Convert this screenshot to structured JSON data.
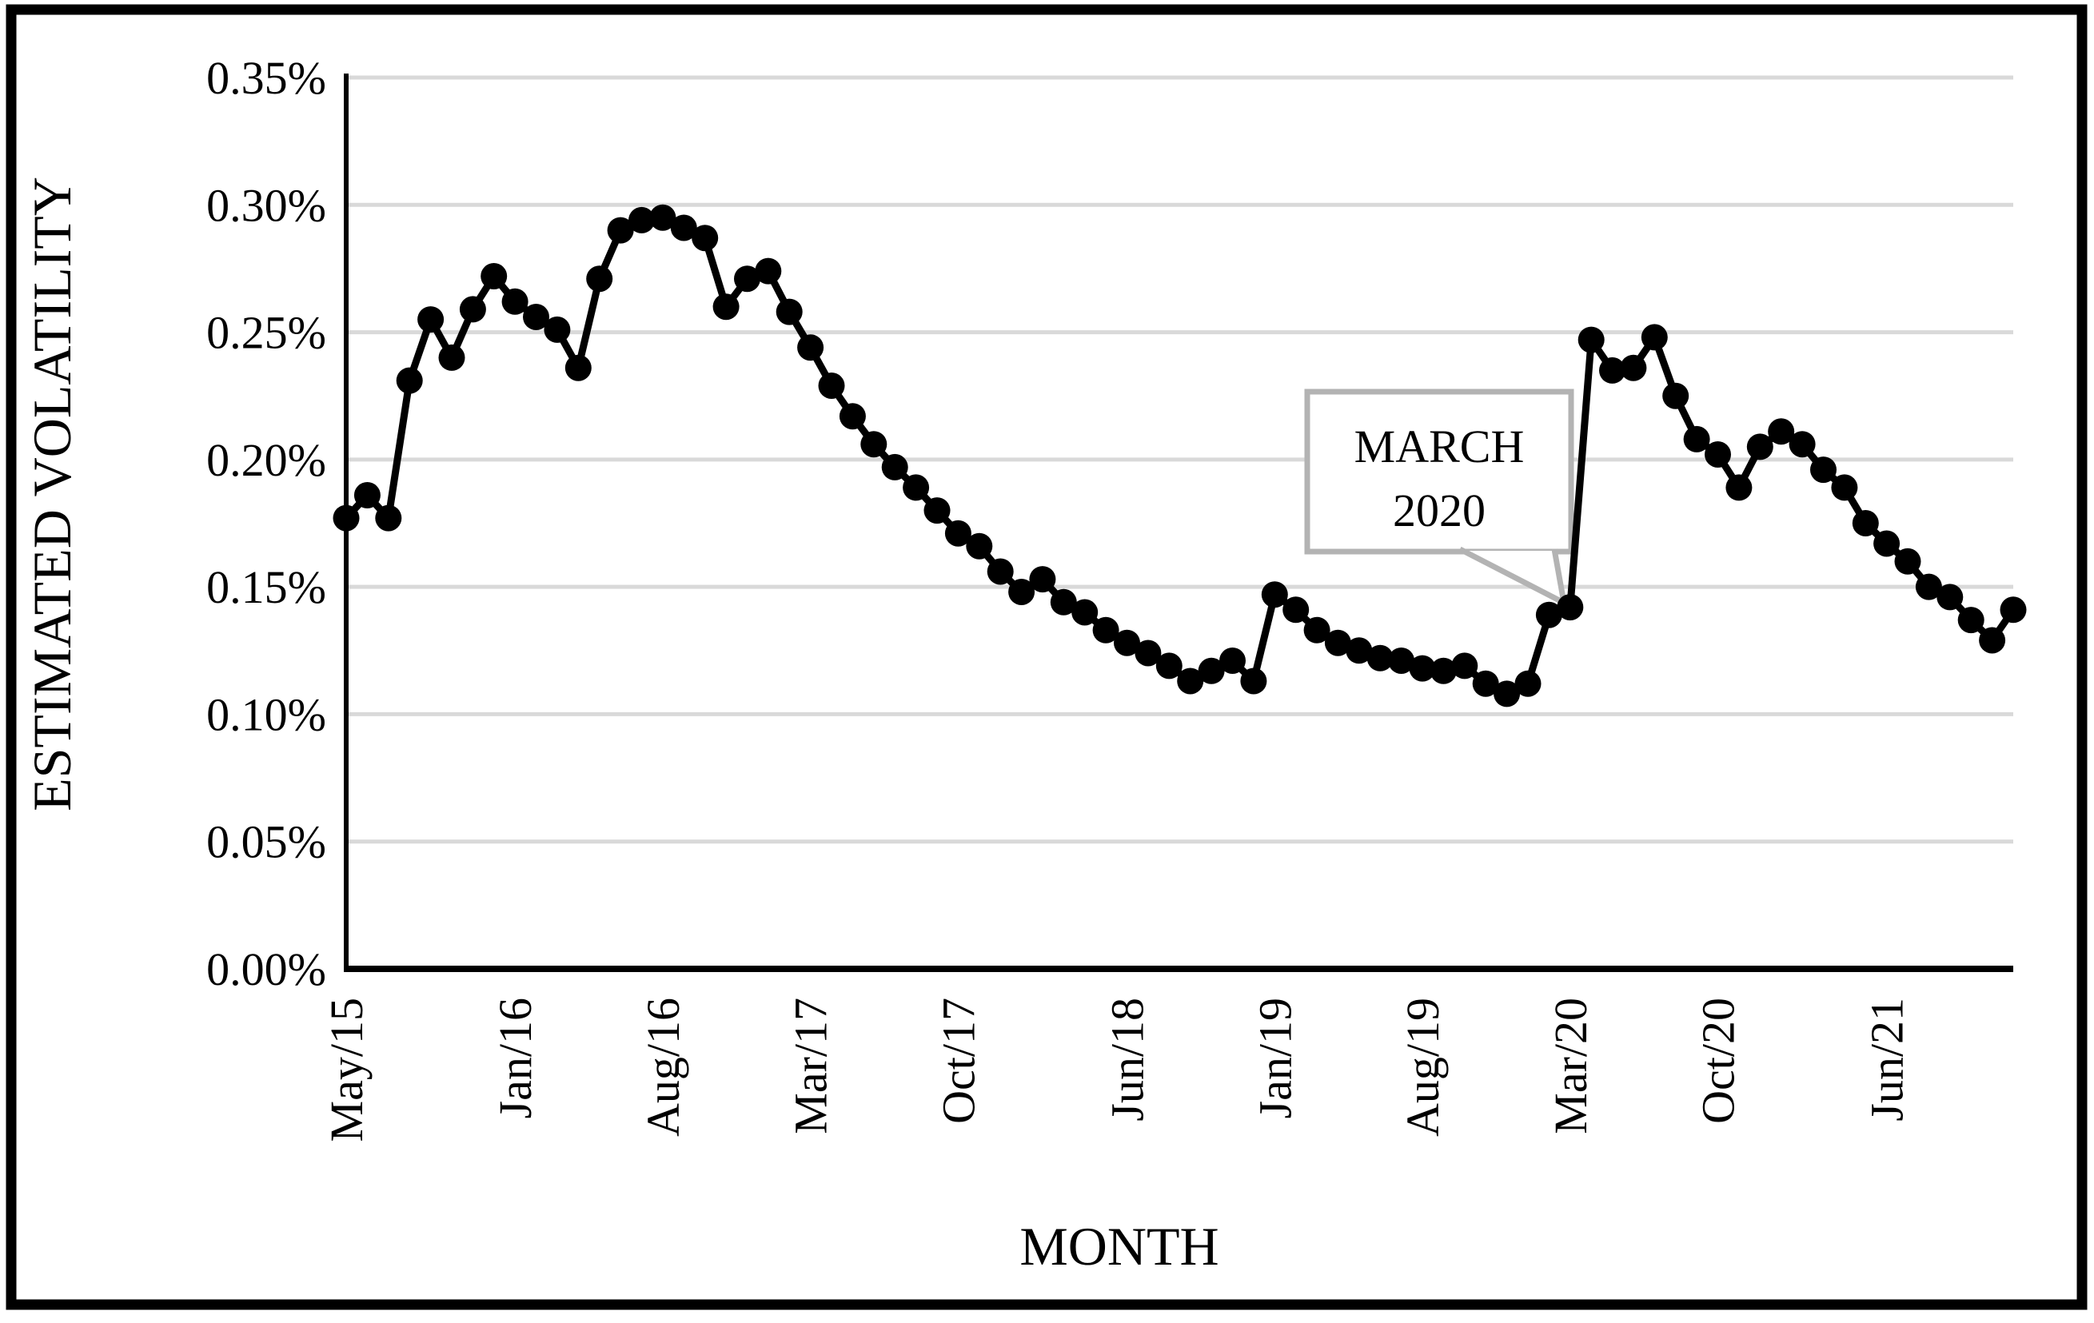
{
  "figure": {
    "border_color": "#000000",
    "background": "#ffffff",
    "gridline_color": "#d9d9d9",
    "line_color": "#000000",
    "callout_border_color": "#b3b3b3"
  },
  "chart_data": {
    "type": "line",
    "title": "",
    "xlabel": "MONTH",
    "ylabel": "ESTIMATED VOLATILITY",
    "unit": "%",
    "ylim": [
      0,
      0.35
    ],
    "grid": "horizontal",
    "legend_position": "none",
    "marker": "circle",
    "y_ticks": [
      {
        "value": 0.35,
        "label": "0.35%"
      },
      {
        "value": 0.3,
        "label": "0.30%"
      },
      {
        "value": 0.25,
        "label": "0.25%"
      },
      {
        "value": 0.2,
        "label": "0.20%"
      },
      {
        "value": 0.15,
        "label": "0.15%"
      },
      {
        "value": 0.1,
        "label": "0.10%"
      },
      {
        "value": 0.05,
        "label": "0.05%"
      },
      {
        "value": 0.0,
        "label": "0.00%"
      }
    ],
    "x_tick_labels": [
      "May/15",
      "Jan/16",
      "Aug/16",
      "Mar/17",
      "Oct/17",
      "Jun/18",
      "Jan/19",
      "Aug/19",
      "Mar/20",
      "Oct/20",
      "Jun/21"
    ],
    "x_tick_indices": [
      0,
      8,
      15,
      22,
      29,
      37,
      44,
      51,
      58,
      65,
      73
    ],
    "categories": [
      "May/15",
      "Jun/15",
      "Jul/15",
      "Aug/15",
      "Sep/15",
      "Oct/15",
      "Nov/15",
      "Dec/15",
      "Jan/16",
      "Feb/16",
      "Mar/16",
      "Apr/16",
      "May/16",
      "Jun/16",
      "Jul/16",
      "Aug/16",
      "Sep/16",
      "Oct/16",
      "Nov/16",
      "Dec/16",
      "Jan/17",
      "Feb/17",
      "Mar/17",
      "Apr/17",
      "May/17",
      "Jun/17",
      "Jul/17",
      "Aug/17",
      "Sep/17",
      "Oct/17",
      "Nov/17",
      "Dec/17",
      "Jan/18",
      "Feb/18",
      "Mar/18",
      "Apr/18",
      "May/18",
      "Jun/18",
      "Jul/18",
      "Aug/18",
      "Sep/18",
      "Oct/18",
      "Nov/18",
      "Dec/18",
      "Jan/19",
      "Feb/19",
      "Mar/19",
      "Apr/19",
      "May/19",
      "Jun/19",
      "Jul/19",
      "Aug/19",
      "Sep/19",
      "Oct/19",
      "Nov/19",
      "Dec/19",
      "Jan/20",
      "Feb/20",
      "Mar/20",
      "Apr/20",
      "May/20",
      "Jun/20",
      "Jul/20",
      "Aug/20",
      "Sep/20",
      "Oct/20",
      "Nov/20",
      "Dec/20",
      "Jan/21",
      "Feb/21",
      "Mar/21",
      "Apr/21",
      "May/21",
      "Jun/21",
      "Jul/21",
      "Aug/21",
      "Sep/21",
      "Oct/21",
      "Nov/21",
      "Dec/21"
    ],
    "values": [
      0.177,
      0.186,
      0.177,
      0.231,
      0.255,
      0.24,
      0.259,
      0.272,
      0.262,
      0.256,
      0.251,
      0.236,
      0.271,
      0.29,
      0.294,
      0.295,
      0.291,
      0.287,
      0.26,
      0.271,
      0.274,
      0.258,
      0.244,
      0.229,
      0.217,
      0.206,
      0.197,
      0.189,
      0.18,
      0.171,
      0.166,
      0.156,
      0.148,
      0.153,
      0.144,
      0.14,
      0.133,
      0.128,
      0.124,
      0.119,
      0.113,
      0.117,
      0.121,
      0.113,
      0.147,
      0.141,
      0.133,
      0.128,
      0.125,
      0.122,
      0.121,
      0.118,
      0.117,
      0.119,
      0.112,
      0.108,
      0.112,
      0.139,
      0.142,
      0.247,
      0.235,
      0.236,
      0.248,
      0.225,
      0.208,
      0.202,
      0.189,
      0.205,
      0.211,
      0.206,
      0.196,
      0.189,
      0.175,
      0.167,
      0.16,
      0.15,
      0.146,
      0.137,
      0.129,
      0.141
    ],
    "annotation": {
      "lines": [
        "MARCH",
        "2020"
      ],
      "target_category": "Mar/20",
      "target_index": 58
    }
  }
}
